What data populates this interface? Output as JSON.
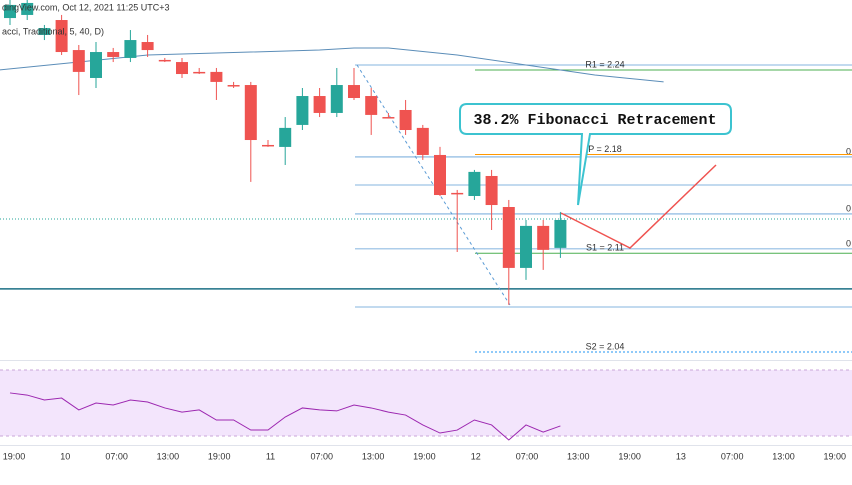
{
  "chart_data": [
    {
      "type": "candlestick",
      "header": "dingView.com, Oct 12, 2021 11:25 UTC+3",
      "subheader": "acci, Traditional, 5, 40, D)",
      "annotation": "38.2% Fibonacci Retracement",
      "up_color": "#26a69a",
      "down_color": "#ef5350",
      "ylim": [
        2.0343,
        2.2896
      ],
      "xticks": [
        "19:00",
        "10",
        "07:00",
        "13:00",
        "19:00",
        "11",
        "07:00",
        "13:00",
        "19:00",
        "12",
        "07:00",
        "13:00",
        "19:00",
        "13",
        "07:00",
        "13:00",
        "19:00"
      ],
      "open": [
        2.2768,
        2.279,
        2.2648,
        2.2754,
        2.2541,
        2.2343,
        2.2527,
        2.2485,
        2.2598,
        2.2471,
        2.2456,
        2.2386,
        2.2386,
        2.2293,
        2.2293,
        2.1868,
        2.1854,
        2.201,
        2.2215,
        2.2095,
        2.2293,
        2.2215,
        2.2066,
        2.2116,
        2.1989,
        2.1797,
        2.1528,
        2.1506,
        2.1648,
        2.1428,
        2.0996,
        2.1294,
        2.1138
      ],
      "high": [
        2.2896,
        2.2896,
        2.2719,
        2.279,
        2.2577,
        2.2598,
        2.2556,
        2.2683,
        2.2648,
        2.2485,
        2.2485,
        2.2414,
        2.2414,
        2.2315,
        2.2315,
        2.1903,
        2.2066,
        2.2272,
        2.2272,
        2.2414,
        2.2414,
        2.2272,
        2.2095,
        2.2187,
        2.201,
        2.1854,
        2.1549,
        2.1691,
        2.1691,
        2.1478,
        2.1336,
        2.1336,
        2.1393
      ],
      "low": [
        2.2719,
        2.2754,
        2.2612,
        2.2506,
        2.2222,
        2.2272,
        2.2456,
        2.2456,
        2.2492,
        2.2456,
        2.2343,
        2.2371,
        2.2187,
        2.2272,
        2.1606,
        2.1854,
        2.1726,
        2.1974,
        2.2066,
        2.2066,
        2.2187,
        2.1939,
        2.2066,
        2.1939,
        2.1762,
        2.1506,
        2.1109,
        2.1478,
        2.1265,
        2.0734,
        2.0911,
        2.0982,
        2.1067
      ],
      "close": [
        2.2861,
        2.2875,
        2.2697,
        2.2527,
        2.2386,
        2.2527,
        2.2492,
        2.2612,
        2.2541,
        2.2471,
        2.2371,
        2.2386,
        2.2315,
        2.2293,
        2.1903,
        2.1868,
        2.1989,
        2.2215,
        2.2095,
        2.2293,
        2.2201,
        2.2081,
        2.2066,
        2.1974,
        2.1797,
        2.1513,
        2.1528,
        2.1677,
        2.1442,
        2.0996,
        2.1294,
        2.1124,
        2.1336
      ],
      "ma": {
        "color": "#5b8db8",
        "x": [
          -0.6,
          4,
          8,
          14,
          18,
          20,
          22,
          26,
          30,
          34,
          38
        ],
        "values": [
          2.24,
          2.2456,
          2.2506,
          2.2527,
          2.2541,
          2.2556,
          2.2556,
          2.2506,
          2.2435,
          2.2364,
          2.2315
        ]
      },
      "pivots": [
        {
          "value": 2.24,
          "label": "R1 = 2.24",
          "color": "#4caf50"
        },
        {
          "value": 2.18,
          "label": "P = 2.18",
          "color": "#ff9800"
        },
        {
          "value": 2.11,
          "label": "S1 = 2.11",
          "color": "#4caf50"
        },
        {
          "value": 2.04,
          "label": "S2 = 2.04",
          "color": "#2196f3"
        }
      ],
      "fib_levels": [
        {
          "value": 2.2435
        },
        {
          "value": 2.1783,
          "label": "0"
        },
        {
          "value": 2.1584
        },
        {
          "value": 2.1379,
          "label": "0"
        },
        {
          "value": 2.1131,
          "label": "0"
        },
        {
          "value": 2.0719
        }
      ],
      "horizontal_line": 2.0847,
      "last_price": 2.1343
    },
    {
      "type": "line",
      "color": "#9c27b0",
      "band": [
        30,
        70
      ],
      "values": [
        56.1,
        54.8,
        51.8,
        53.0,
        45.8,
        50.0,
        48.8,
        51.8,
        50.6,
        47.0,
        44.5,
        45.8,
        39.7,
        39.7,
        33.6,
        33.6,
        41.5,
        47.0,
        45.8,
        45.2,
        48.8,
        47.0,
        44.5,
        42.7,
        36.7,
        31.8,
        33.6,
        39.7,
        36.7,
        27.6,
        36.7,
        32.4,
        36.1
      ]
    }
  ]
}
